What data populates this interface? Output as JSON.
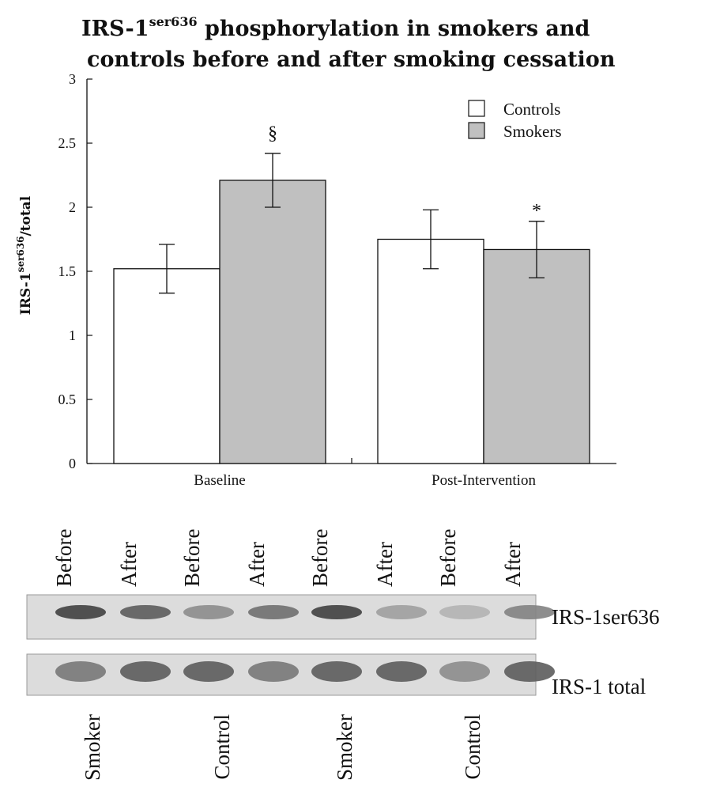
{
  "chart_data": {
    "type": "bar",
    "title": {
      "line1_pre": "IRS-1",
      "line1_sup": "ser636",
      "line1_post": " phosphorylation in smokers and",
      "line2": "controls before and after smoking cessation"
    },
    "ylabel": {
      "pre": "IRS-1",
      "sup": "ser636",
      "post": "/total"
    },
    "xlabel": "",
    "ylim": [
      0,
      3
    ],
    "yticks": [
      "0",
      "0.5",
      "1",
      "1.5",
      "2",
      "2.5",
      "3"
    ],
    "categories": [
      "Baseline",
      "Post-Intervention"
    ],
    "series": [
      {
        "name": "Controls",
        "color": "#ffffff",
        "values": [
          1.52,
          1.75
        ],
        "errors": [
          0.19,
          0.23
        ]
      },
      {
        "name": "Smokers",
        "color": "#c0c0c0",
        "values": [
          2.21,
          1.67
        ],
        "errors": [
          0.21,
          0.22
        ]
      }
    ],
    "annotations": [
      {
        "text": "§",
        "series": 1,
        "category": 0
      },
      {
        "text": "*",
        "series": 1,
        "category": 1
      }
    ],
    "legend_position": "top-right",
    "grid": false
  },
  "blot": {
    "lanes": [
      "Before",
      "After",
      "Before",
      "After",
      "Before",
      "After",
      "Before",
      "After"
    ],
    "rows": [
      {
        "label": "IRS-1ser636",
        "intensity": [
          0.85,
          0.7,
          0.45,
          0.6,
          0.85,
          0.35,
          0.25,
          0.5
        ]
      },
      {
        "label": "IRS-1 total",
        "intensity": [
          0.55,
          0.7,
          0.7,
          0.55,
          0.7,
          0.7,
          0.45,
          0.7
        ]
      }
    ],
    "groups": [
      "Smoker",
      "Control",
      "Smoker",
      "Control"
    ]
  }
}
